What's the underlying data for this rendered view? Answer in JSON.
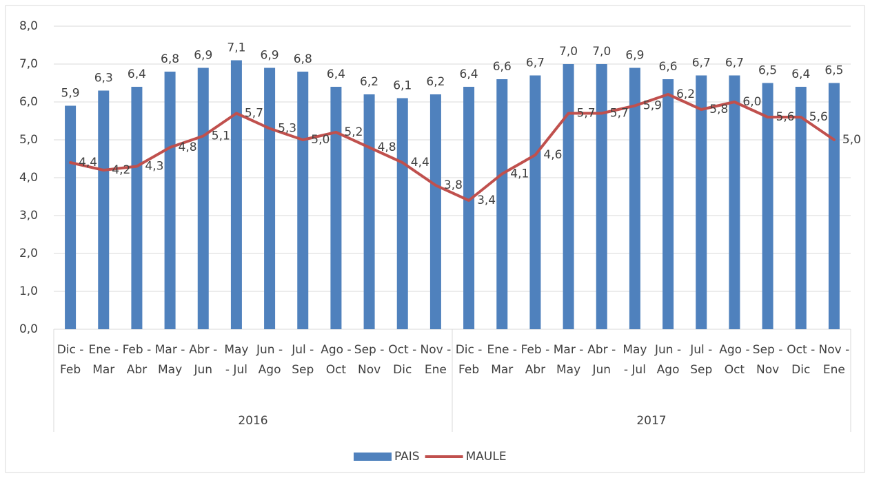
{
  "chart_data": {
    "type": "bar-line",
    "categories": [
      "Dic - Feb",
      "Ene - Mar",
      "Feb - Abr",
      "Mar - May",
      "Abr - Jun",
      "May - Jul",
      "Jun - Ago",
      "Jul - Sep",
      "Ago - Oct",
      "Sep - Nov",
      "Oct - Dic",
      "Nov - Ene",
      "Dic - Feb",
      "Ene - Mar",
      "Feb - Abr",
      "Mar - May",
      "Abr - Jun",
      "May - Jul",
      "Jun - Ago",
      "Jul - Sep",
      "Ago - Oct",
      "Sep - Nov",
      "Oct - Dic",
      "Nov - Ene"
    ],
    "groups": [
      "2016",
      "2017"
    ],
    "series": [
      {
        "name": "PAIS",
        "type": "bar",
        "color": "#4f81bd",
        "values": [
          5.9,
          6.3,
          6.4,
          6.8,
          6.9,
          7.1,
          6.9,
          6.8,
          6.4,
          6.2,
          6.1,
          6.2,
          6.4,
          6.6,
          6.7,
          7.0,
          7.0,
          6.9,
          6.6,
          6.7,
          6.7,
          6.5,
          6.4,
          6.5
        ],
        "value_labels": [
          "5,9",
          "6,3",
          "6,4",
          "6,8",
          "6,9",
          "7,1",
          "6,9",
          "6,8",
          "6,4",
          "6,2",
          "6,1",
          "6,2",
          "6,4",
          "6,6",
          "6,7",
          "7,0",
          "7,0",
          "6,9",
          "6,6",
          "6,7",
          "6,7",
          "6,5",
          "6,4",
          "6,5"
        ]
      },
      {
        "name": "MAULE",
        "type": "line",
        "color": "#c0504d",
        "values": [
          4.4,
          4.2,
          4.3,
          4.8,
          5.1,
          5.7,
          5.3,
          5.0,
          5.2,
          4.8,
          4.4,
          3.8,
          3.4,
          4.1,
          4.6,
          5.7,
          5.7,
          5.9,
          6.2,
          5.8,
          6.0,
          5.6,
          5.6,
          5.0
        ],
        "value_labels": [
          "4,4",
          "4,2",
          "4,3",
          "4,8",
          "5,1",
          "5,7",
          "5,3",
          "5,0",
          "5,2",
          "4,8",
          "4,4",
          "3,8",
          "3,4",
          "4,1",
          "4,6",
          "5,7",
          "5,7",
          "5,9",
          "6,2",
          "5,8",
          "6,0",
          "5,6",
          "5,6",
          "5,0"
        ]
      }
    ],
    "ylim": [
      0,
      8
    ],
    "yticks": [
      {
        "value": 0,
        "label": "0,0"
      },
      {
        "value": 1,
        "label": "1,0"
      },
      {
        "value": 2,
        "label": "2,0"
      },
      {
        "value": 3,
        "label": "3,0"
      },
      {
        "value": 4,
        "label": "4,0"
      },
      {
        "value": 5,
        "label": "5,0"
      },
      {
        "value": 6,
        "label": "6,0"
      },
      {
        "value": 7,
        "label": "7,0"
      },
      {
        "value": 8,
        "label": "8,0"
      }
    ],
    "grid": true,
    "legend": "bottom"
  }
}
